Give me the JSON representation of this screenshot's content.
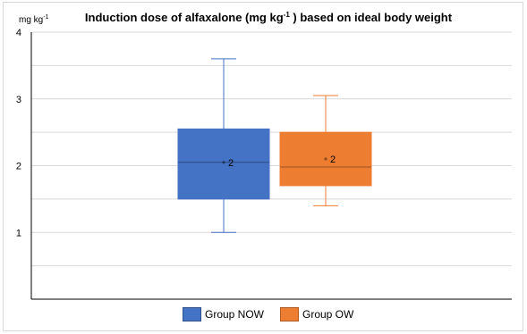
{
  "chart_data": {
    "type": "box",
    "title": "Induction dose of alfaxalone (mg kg",
    "title_superscript": "-1",
    "title_suffix": " ) based on ideal body weight",
    "ylabel": "mg kg",
    "ylabel_superscript": "-1",
    "ylim": [
      0,
      4
    ],
    "yticks": [
      1,
      2,
      3,
      4
    ],
    "grid": true,
    "legend_position": "bottom",
    "series": [
      {
        "name": "Group NOW",
        "color": "#4472c4",
        "min": 1.0,
        "q1": 1.5,
        "median": 2.05,
        "q3": 2.55,
        "max": 3.6,
        "mean": 2.05,
        "mean_label": "2"
      },
      {
        "name": "Group OW",
        "color": "#ed7d31",
        "min": 1.4,
        "q1": 1.7,
        "median": 1.98,
        "q3": 2.5,
        "max": 3.05,
        "mean": 2.1,
        "mean_label": "2"
      }
    ]
  }
}
